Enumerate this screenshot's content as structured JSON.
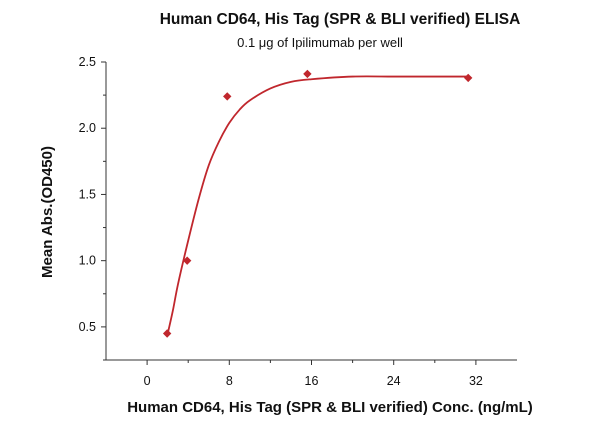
{
  "chart_data": {
    "type": "scatter",
    "title": "Human CD64, His Tag (SPR & BLI verified) ELISA",
    "subtitle": "0.1 μg of Ipilimumab per well",
    "xlabel": "Human CD64, His Tag (SPR & BLI verified) Conc. (ng/mL)",
    "ylabel": "Mean Abs.(OD450)",
    "xlim": [
      -4,
      36
    ],
    "ylim": [
      0.25,
      2.5
    ],
    "x_ticks": [
      0,
      8,
      16,
      24,
      32
    ],
    "x_tick_labels": [
      "0",
      "8",
      "16",
      "24",
      "32"
    ],
    "y_ticks": [
      0.5,
      1.0,
      1.5,
      2.0,
      2.5
    ],
    "y_tick_labels": [
      "0.5",
      "1.0",
      "1.5",
      "2.0",
      "2.5"
    ],
    "grid": false,
    "series": [
      {
        "points": [
          {
            "x": 1.95,
            "y": 0.45
          },
          {
            "x": 3.9,
            "y": 1.0
          },
          {
            "x": 7.8,
            "y": 2.24
          },
          {
            "x": 15.6,
            "y": 2.41
          },
          {
            "x": 31.25,
            "y": 2.38
          }
        ],
        "fit_curve": [
          {
            "x": 1.95,
            "y": 0.43
          },
          {
            "x": 2.5,
            "y": 0.62
          },
          {
            "x": 3.0,
            "y": 0.82
          },
          {
            "x": 3.9,
            "y": 1.12
          },
          {
            "x": 5.0,
            "y": 1.46
          },
          {
            "x": 6.0,
            "y": 1.72
          },
          {
            "x": 7.0,
            "y": 1.9
          },
          {
            "x": 8.0,
            "y": 2.04
          },
          {
            "x": 9.0,
            "y": 2.14
          },
          {
            "x": 10.0,
            "y": 2.21
          },
          {
            "x": 12.0,
            "y": 2.3
          },
          {
            "x": 14.0,
            "y": 2.35
          },
          {
            "x": 16.0,
            "y": 2.37
          },
          {
            "x": 20.0,
            "y": 2.39
          },
          {
            "x": 24.0,
            "y": 2.39
          },
          {
            "x": 28.0,
            "y": 2.39
          },
          {
            "x": 31.25,
            "y": 2.39
          }
        ],
        "marker": "diamond",
        "color": "#c0272d"
      }
    ]
  }
}
